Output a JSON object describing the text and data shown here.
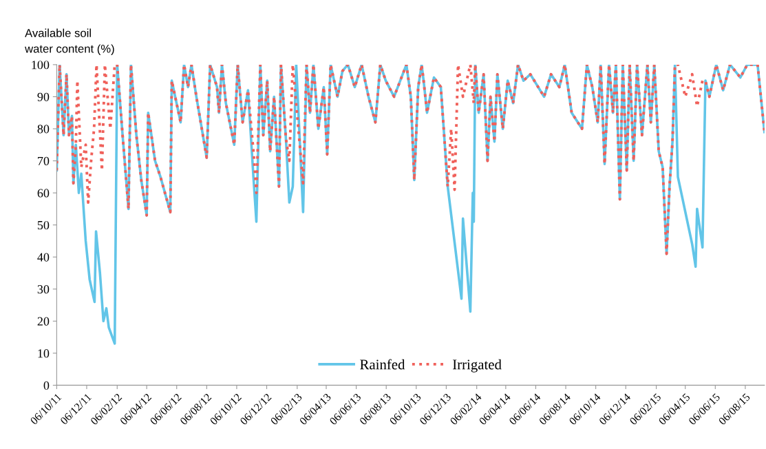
{
  "chart_data": {
    "type": "line",
    "ylabel": "Available soil\nwater content (%)",
    "ylim": [
      0,
      100
    ],
    "yticks": [
      0,
      10,
      20,
      30,
      40,
      50,
      60,
      70,
      80,
      90,
      100
    ],
    "xlim": [
      "2011-10-06",
      "2015-09-14"
    ],
    "xticks": [
      {
        "value": "2011-10-06",
        "label": "06/10/11"
      },
      {
        "value": "2011-12-06",
        "label": "06/12/11"
      },
      {
        "value": "2012-02-06",
        "label": "06/02/12"
      },
      {
        "value": "2012-04-06",
        "label": "06/04/12"
      },
      {
        "value": "2012-06-06",
        "label": "06/06/12"
      },
      {
        "value": "2012-08-06",
        "label": "06/08/12"
      },
      {
        "value": "2012-10-06",
        "label": "06/10/12"
      },
      {
        "value": "2012-12-06",
        "label": "06/12/12"
      },
      {
        "value": "2013-02-06",
        "label": "06/02/13"
      },
      {
        "value": "2013-04-06",
        "label": "06/04/13"
      },
      {
        "value": "2013-06-06",
        "label": "06/06/13"
      },
      {
        "value": "2013-08-06",
        "label": "06/08/13"
      },
      {
        "value": "2013-10-06",
        "label": "06/10/13"
      },
      {
        "value": "2013-12-06",
        "label": "06/12/13"
      },
      {
        "value": "2014-02-06",
        "label": "06/02/14"
      },
      {
        "value": "2014-04-06",
        "label": "06/04/14"
      },
      {
        "value": "2014-06-06",
        "label": "06/06/14"
      },
      {
        "value": "2014-08-06",
        "label": "06/08/14"
      },
      {
        "value": "2014-10-06",
        "label": "06/10/14"
      },
      {
        "value": "2014-12-06",
        "label": "06/12/14"
      },
      {
        "value": "2015-02-06",
        "label": "06/02/15"
      },
      {
        "value": "2015-04-06",
        "label": "06/04/15"
      },
      {
        "value": "2015-06-06",
        "label": "06/06/15"
      },
      {
        "value": "2015-08-06",
        "label": "06/08/15"
      }
    ],
    "grid": false,
    "legend": "bottom",
    "marker": "none",
    "series": [
      {
        "name": "Rainfed",
        "color": "#62c5e8",
        "line_style": "solid",
        "x": [
          "2011-10-06",
          "2011-10-12",
          "2011-10-20",
          "2011-10-26",
          "2011-10-31",
          "2011-11-06",
          "2011-11-09",
          "2011-11-14",
          "2011-11-20",
          "2011-11-25",
          "2011-12-04",
          "2011-12-12",
          "2011-12-22",
          "2011-12-25",
          "2012-01-02",
          "2012-01-09",
          "2012-01-15",
          "2012-01-20",
          "2012-02-01",
          "2012-02-06",
          "2012-02-17",
          "2012-02-29",
          "2012-03-05",
          "2012-03-16",
          "2012-03-26",
          "2012-04-06",
          "2012-04-09",
          "2012-04-23",
          "2012-05-04",
          "2012-05-24",
          "2012-05-27",
          "2012-06-14",
          "2012-06-21",
          "2012-06-29",
          "2012-07-06",
          "2012-07-16",
          "2012-08-06",
          "2012-08-13",
          "2012-08-27",
          "2012-08-31",
          "2012-09-06",
          "2012-09-14",
          "2012-10-01",
          "2012-10-08",
          "2012-10-18",
          "2012-10-29",
          "2012-11-09",
          "2012-11-15",
          "2012-11-23",
          "2012-11-29",
          "2012-12-07",
          "2012-12-13",
          "2012-12-21",
          "2012-12-31",
          "2013-01-04",
          "2013-01-14",
          "2013-01-21",
          "2013-01-28",
          "2013-02-04",
          "2013-02-18",
          "2013-02-25",
          "2013-03-04",
          "2013-03-11",
          "2013-03-21",
          "2013-04-01",
          "2013-04-08",
          "2013-04-15",
          "2013-04-29",
          "2013-05-09",
          "2013-05-20",
          "2013-06-03",
          "2013-06-17",
          "2013-07-01",
          "2013-07-15",
          "2013-07-25",
          "2013-08-05",
          "2013-08-22",
          "2013-09-16",
          "2013-09-25",
          "2013-10-02",
          "2013-10-10",
          "2013-10-17",
          "2013-10-21",
          "2013-10-28",
          "2013-11-11",
          "2013-11-25",
          "2013-12-09",
          "2014-01-06",
          "2014-01-09",
          "2014-01-24",
          "2014-01-29",
          "2014-01-31",
          "2014-02-03",
          "2014-02-10",
          "2014-02-20",
          "2014-02-28",
          "2014-03-06",
          "2014-03-14",
          "2014-03-20",
          "2014-03-31",
          "2014-04-10",
          "2014-04-21",
          "2014-05-01",
          "2014-05-12",
          "2014-05-26",
          "2014-06-23",
          "2014-07-07",
          "2014-07-24",
          "2014-08-04",
          "2014-08-18",
          "2014-09-08",
          "2014-09-18",
          "2014-09-29",
          "2014-10-10",
          "2014-10-16",
          "2014-10-24",
          "2014-11-02",
          "2014-11-10",
          "2014-11-16",
          "2014-11-24",
          "2014-11-30",
          "2014-12-08",
          "2014-12-14",
          "2014-12-22",
          "2014-12-29",
          "2015-01-08",
          "2015-01-19",
          "2015-01-26",
          "2015-02-02",
          "2015-02-11",
          "2015-02-19",
          "2015-02-27",
          "2015-03-05",
          "2015-03-11",
          "2015-03-16",
          "2015-03-22",
          "2015-04-20",
          "2015-04-27",
          "2015-04-30",
          "2015-05-11",
          "2015-05-17",
          "2015-05-25",
          "2015-06-08",
          "2015-06-22",
          "2015-07-06",
          "2015-07-27",
          "2015-08-10",
          "2015-08-31",
          "2015-09-14"
        ],
        "values": [
          67,
          100,
          78,
          97,
          78,
          84,
          63,
          75,
          60,
          66,
          45,
          33,
          26,
          48,
          35,
          20,
          24,
          18,
          13,
          100,
          78,
          55,
          100,
          78,
          64,
          53,
          85,
          70,
          65,
          54,
          95,
          82,
          100,
          93,
          100,
          90,
          71,
          100,
          93,
          85,
          100,
          88,
          75,
          100,
          82,
          92,
          65,
          51,
          100,
          78,
          95,
          73,
          90,
          62,
          100,
          77,
          57,
          62,
          100,
          54,
          100,
          85,
          100,
          80,
          93,
          72,
          100,
          90,
          98,
          100,
          93,
          100,
          90,
          82,
          100,
          95,
          90,
          100,
          90,
          64,
          93,
          100,
          95,
          85,
          96,
          93,
          62,
          27,
          52,
          23,
          60,
          51,
          100,
          85,
          97,
          70,
          90,
          76,
          97,
          80,
          95,
          88,
          100,
          95,
          97,
          90,
          97,
          93,
          100,
          85,
          80,
          100,
          93,
          82,
          100,
          69,
          100,
          85,
          100,
          58,
          100,
          67,
          100,
          70,
          100,
          78,
          100,
          82,
          100,
          73,
          68,
          41,
          62,
          76,
          100,
          65,
          44,
          37,
          55,
          43,
          95,
          90,
          100,
          92,
          100,
          96,
          100,
          100,
          79
        ]
      },
      {
        "name": "Irrigated",
        "color": "#f0605a",
        "line_style": "dotted",
        "x": [
          "2011-10-06",
          "2011-10-12",
          "2011-10-20",
          "2011-10-26",
          "2011-10-31",
          "2011-11-06",
          "2011-11-09",
          "2011-11-14",
          "2011-11-17",
          "2011-11-25",
          "2011-12-04",
          "2011-12-09",
          "2011-12-15",
          "2011-12-21",
          "2011-12-26",
          "2012-01-06",
          "2012-01-12",
          "2012-01-23",
          "2012-02-01",
          "2012-02-06",
          "2012-02-17",
          "2012-02-29",
          "2012-03-05",
          "2012-03-16",
          "2012-03-26",
          "2012-04-06",
          "2012-04-09",
          "2012-04-23",
          "2012-05-04",
          "2012-05-24",
          "2012-05-27",
          "2012-06-14",
          "2012-06-21",
          "2012-06-29",
          "2012-07-06",
          "2012-07-16",
          "2012-08-06",
          "2012-08-13",
          "2012-08-27",
          "2012-08-31",
          "2012-09-06",
          "2012-09-14",
          "2012-10-01",
          "2012-10-08",
          "2012-10-18",
          "2012-10-29",
          "2012-11-09",
          "2012-11-15",
          "2012-11-23",
          "2012-11-29",
          "2012-12-07",
          "2012-12-13",
          "2012-12-21",
          "2012-12-31",
          "2013-01-04",
          "2013-01-14",
          "2013-01-21",
          "2013-01-28",
          "2013-02-18",
          "2013-02-25",
          "2013-03-04",
          "2013-03-11",
          "2013-03-21",
          "2013-04-01",
          "2013-04-08",
          "2013-04-15",
          "2013-04-29",
          "2013-05-09",
          "2013-05-20",
          "2013-06-03",
          "2013-06-17",
          "2013-07-01",
          "2013-07-15",
          "2013-07-25",
          "2013-08-05",
          "2013-08-22",
          "2013-09-16",
          "2013-09-25",
          "2013-10-02",
          "2013-10-10",
          "2013-10-17",
          "2013-10-21",
          "2013-10-28",
          "2013-11-11",
          "2013-11-25",
          "2013-12-09",
          "2013-12-16",
          "2013-12-23",
          "2013-12-30",
          "2014-01-09",
          "2014-01-24",
          "2014-01-31",
          "2014-02-03",
          "2014-02-10",
          "2014-02-20",
          "2014-02-28",
          "2014-03-06",
          "2014-03-14",
          "2014-03-20",
          "2014-03-31",
          "2014-04-10",
          "2014-04-21",
          "2014-05-01",
          "2014-05-12",
          "2014-05-26",
          "2014-06-23",
          "2014-07-07",
          "2014-07-24",
          "2014-08-04",
          "2014-08-18",
          "2014-09-08",
          "2014-09-18",
          "2014-09-29",
          "2014-10-10",
          "2014-10-16",
          "2014-10-24",
          "2014-11-02",
          "2014-11-10",
          "2014-11-16",
          "2014-11-24",
          "2014-11-30",
          "2014-12-08",
          "2014-12-14",
          "2014-12-22",
          "2014-12-29",
          "2015-01-08",
          "2015-01-19",
          "2015-01-26",
          "2015-02-02",
          "2015-02-11",
          "2015-02-19",
          "2015-02-27",
          "2015-03-05",
          "2015-03-11",
          "2015-03-16",
          "2015-03-22",
          "2015-04-06",
          "2015-04-20",
          "2015-04-30",
          "2015-05-11",
          "2015-05-17",
          "2015-05-25",
          "2015-06-08",
          "2015-06-22",
          "2015-07-06",
          "2015-07-27",
          "2015-08-10",
          "2015-08-31",
          "2015-09-14"
        ],
        "values": [
          67,
          100,
          78,
          97,
          78,
          84,
          63,
          75,
          95,
          68,
          75,
          57,
          70,
          80,
          100,
          67,
          100,
          80,
          100,
          100,
          78,
          55,
          100,
          78,
          64,
          53,
          85,
          70,
          65,
          54,
          95,
          82,
          100,
          93,
          100,
          90,
          71,
          100,
          93,
          85,
          100,
          88,
          75,
          100,
          82,
          92,
          73,
          60,
          100,
          78,
          95,
          73,
          90,
          62,
          100,
          77,
          70,
          100,
          63,
          100,
          85,
          100,
          80,
          93,
          72,
          100,
          90,
          98,
          100,
          93,
          100,
          90,
          82,
          100,
          95,
          90,
          100,
          90,
          64,
          93,
          100,
          95,
          85,
          96,
          93,
          62,
          80,
          61,
          100,
          90,
          100,
          88,
          100,
          85,
          97,
          70,
          90,
          76,
          97,
          80,
          95,
          88,
          100,
          95,
          97,
          90,
          97,
          93,
          100,
          85,
          80,
          100,
          93,
          82,
          100,
          69,
          100,
          85,
          100,
          58,
          100,
          67,
          100,
          70,
          100,
          78,
          100,
          82,
          100,
          73,
          68,
          41,
          62,
          76,
          100,
          100,
          90,
          97,
          87,
          95,
          95,
          90,
          100,
          92,
          100,
          96,
          100,
          100,
          79
        ]
      }
    ]
  }
}
